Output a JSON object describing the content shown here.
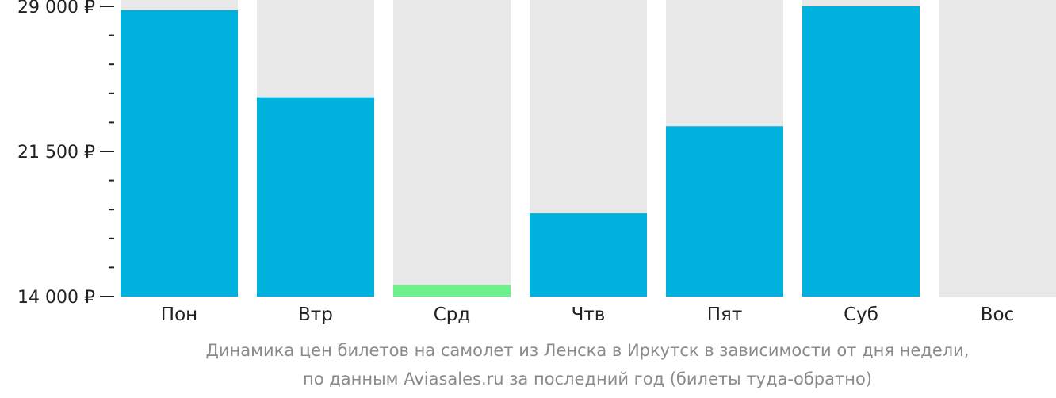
{
  "chart_data": {
    "type": "bar",
    "categories": [
      "Пон",
      "Втр",
      "Срд",
      "Чтв",
      "Пят",
      "Суб",
      "Вос"
    ],
    "values": [
      28800,
      24300,
      null,
      18300,
      22800,
      29000,
      null
    ],
    "min_value_day": {
      "index": 2,
      "value": 14600
    },
    "y_tick_labels": [
      "29 000 ₽",
      "21 500 ₽",
      "14 000 ₽"
    ],
    "y_ticks": [
      29000,
      21500,
      14000
    ],
    "ylim": [
      14000,
      29000
    ],
    "colors": {
      "bar": "#00b0dd",
      "bar_min": "#6ef08a",
      "bar_background": "#e8e8e8",
      "axis": "#222222"
    },
    "caption": [
      "Динамика цен билетов на самолет из Ленска в Иркутск в зависимости от дня недели,",
      "по данным Aviasales.ru за последний год (билеты туда-обратно)"
    ]
  }
}
